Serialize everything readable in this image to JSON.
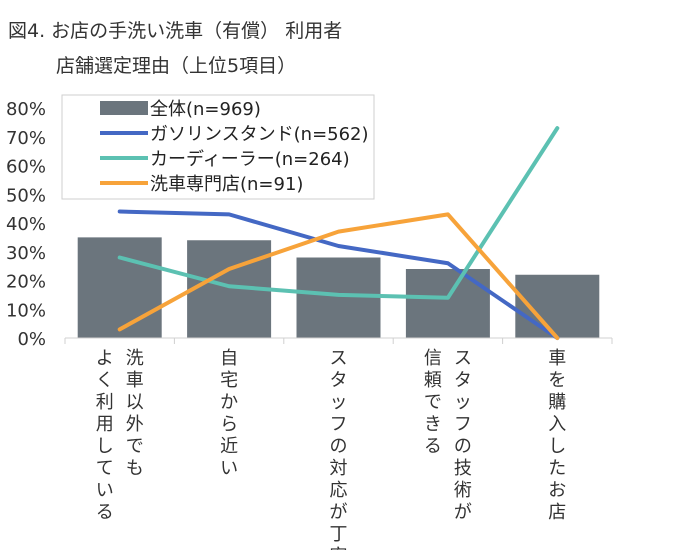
{
  "chart_data": {
    "type": "bar",
    "title_lines": [
      "図4. お店の手洗い洗車（有償） 利用者",
      "店舗選定理由（上位5項目）"
    ],
    "categories": [
      [
        "洗車以外でも",
        "よく利用している"
      ],
      [
        "自宅から近い"
      ],
      [
        "スタッフの対応が丁寧"
      ],
      [
        "スタッフの技術が",
        "信頼できる"
      ],
      [
        "車を購入したお店"
      ]
    ],
    "y_ticks": [
      "0%",
      "10%",
      "20%",
      "30%",
      "40%",
      "50%",
      "60%",
      "70%",
      "80%"
    ],
    "ylim": [
      0,
      80
    ],
    "bar_series": {
      "name": "全体(n=969)",
      "color": "#6b757d",
      "values": [
        35,
        34,
        28,
        24,
        22
      ]
    },
    "line_series": [
      {
        "name": "ガソリンスタンド(n=562)",
        "color": "#4468c4",
        "values": [
          44,
          43,
          32,
          26,
          0
        ]
      },
      {
        "name": "カーディーラー(n=264)",
        "color": "#5cc1b2",
        "values": [
          28,
          18,
          15,
          14,
          73
        ]
      },
      {
        "name": "洗車専門店(n=91)",
        "color": "#f7a33a",
        "values": [
          3,
          24,
          37,
          43,
          0
        ]
      }
    ],
    "legend_position": "top-left",
    "grid": false
  }
}
